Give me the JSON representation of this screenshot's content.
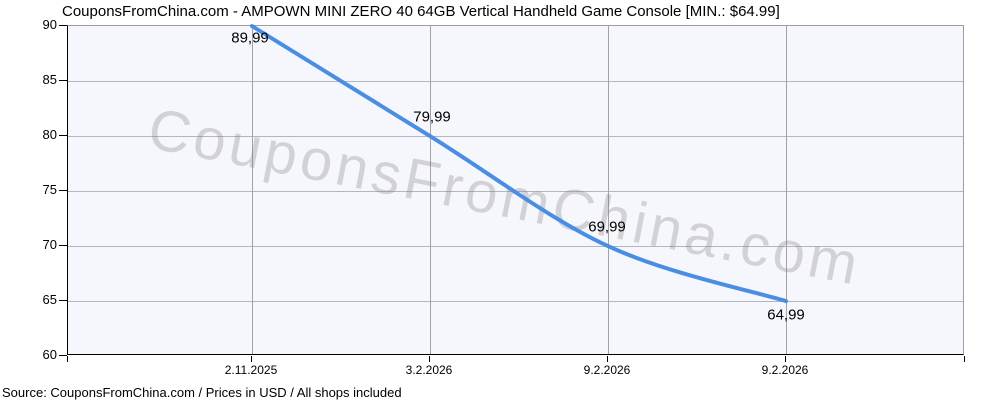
{
  "chart_data": {
    "type": "line",
    "title": "CouponsFromChina.com - AMPOWN MINI ZERO 40 64GB Vertical Handheld Game Console [MIN.: $64.99]",
    "x": [
      "2.11.2025",
      "3.2.2026",
      "9.2.2026",
      "9.2.2026"
    ],
    "values": [
      89.99,
      79.99,
      69.99,
      64.99
    ],
    "point_labels": [
      "89,99",
      "79,99",
      "69,99",
      "64,99"
    ],
    "ylim": [
      60,
      90
    ],
    "yticks": [
      90,
      85,
      80,
      75,
      70,
      65,
      60
    ],
    "xlabel": "",
    "ylabel": "",
    "grid": true,
    "legend": "none"
  },
  "watermark": "CouponsFromChina.com",
  "footer": "Source: CouponsFromChina.com / Prices in USD / All shops included",
  "colors": {
    "line": "#4a8ee4",
    "plot_bg": "#f6f7fc",
    "hgrid": "#b3b6bf",
    "vgrid": "#a3a3a3",
    "axis": "#000000",
    "outer_border": "#9e9e9e",
    "watermark": "#d7d7d7",
    "text": "#000000"
  }
}
